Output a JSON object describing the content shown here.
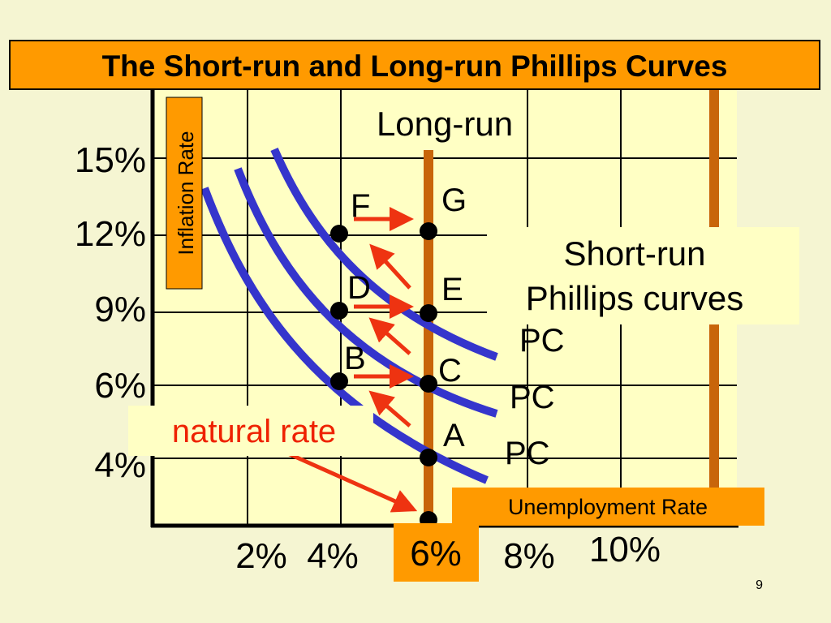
{
  "header": {
    "title": "The Short-run and Long-run Phillips Curves"
  },
  "axes": {
    "y_label": "Inflation Rate",
    "x_label": "Unemployment Rate",
    "y_ticks": [
      "15%",
      "12%",
      "9%",
      "6%",
      "4%"
    ],
    "x_ticks": [
      "2%",
      "4%",
      "6%",
      "8%",
      "10%"
    ]
  },
  "labels": {
    "long_run": "Long-run",
    "short_run": [
      "Short-run",
      "Phillips curves"
    ],
    "curves": [
      "PC",
      "PC",
      "PC"
    ],
    "natural_rate": "natural rate"
  },
  "points": [
    "F",
    "G",
    "D",
    "E",
    "B",
    "C",
    "A"
  ],
  "footer": {
    "page": "9"
  }
}
